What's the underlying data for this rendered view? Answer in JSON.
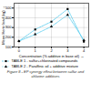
{
  "chart_data": {
    "type": "line",
    "x_label": "Concentration (% additive in base oil)",
    "y_label": "Mean Hertz load (kg)",
    "caption": "Figure 8 - EP synergy effect between sulfur and chlorine additives",
    "x": [
      0,
      1,
      2,
      3,
      4
    ],
    "series": [
      {
        "name": "TABLE 1 - sulfur+chlorinated compounds",
        "color": "#55ccee",
        "marker": "square",
        "line_style": "dashed",
        "values": [
          160,
          280,
          360,
          490,
          155
        ]
      },
      {
        "name": "TABLE 2 - Paraffinic oil + additive mixture",
        "color": "#55ccee",
        "marker": "triangle",
        "line_style": "dotted",
        "values": [
          160,
          230,
          310,
          430,
          170
        ]
      }
    ],
    "xlim": [
      -0.3,
      4.3
    ],
    "xticks": [
      0,
      1,
      2,
      3,
      4
    ],
    "ylim": [
      100,
      550
    ],
    "yticks": [
      100,
      200,
      300,
      400,
      500
    ],
    "grid": true,
    "legend": "bottom"
  }
}
